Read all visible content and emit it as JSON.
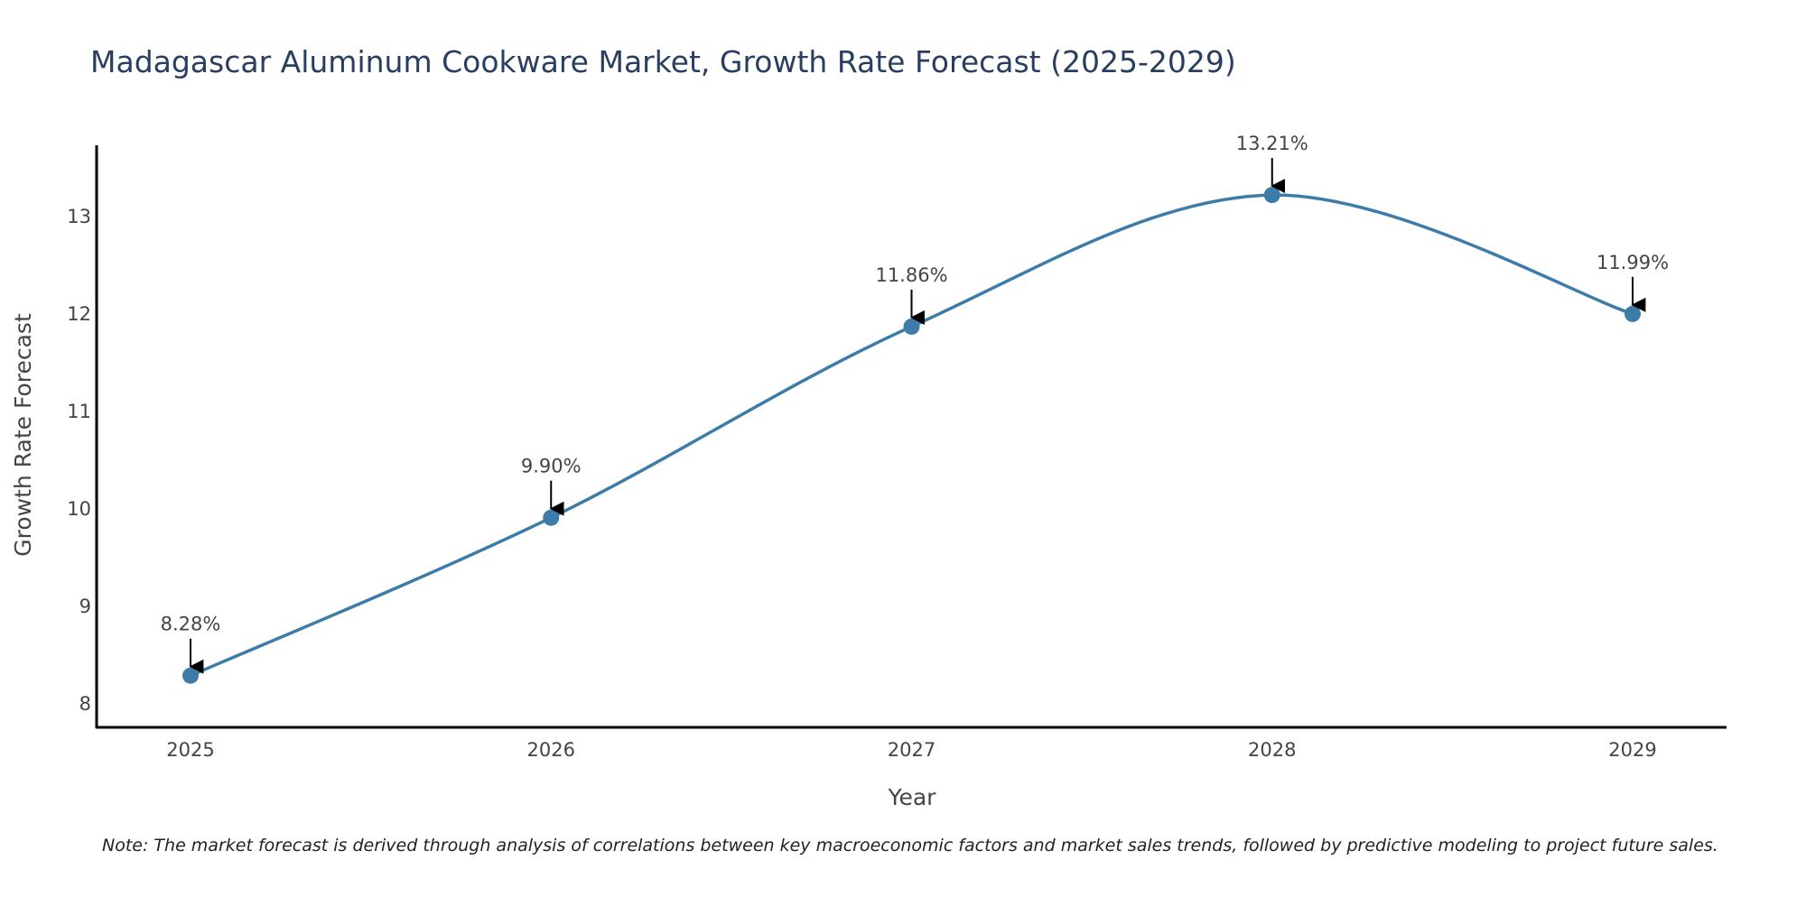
{
  "chart_data": {
    "type": "line",
    "title": "Madagascar Aluminum Cookware Market, Growth Rate Forecast (2025-2029)",
    "xlabel": "Year",
    "ylabel": "Growth Rate Forecast",
    "categories": [
      "2025",
      "2026",
      "2027",
      "2028",
      "2029"
    ],
    "series": [
      {
        "values": [
          8.28,
          9.9,
          11.86,
          13.21,
          11.99
        ],
        "data_labels": [
          "8.28%",
          "9.90%",
          "11.86%",
          "13.21%",
          "11.99%"
        ]
      }
    ],
    "y_ticks": [
      8,
      9,
      10,
      11,
      12,
      13
    ],
    "ylim": [
      7.75,
      13.72
    ],
    "grid": false,
    "legend": "none",
    "line_shape": "spline",
    "note": "Note: The market forecast is derived through analysis of correlations between key macroeconomic factors and market sales trends, followed by predictive modeling to project future sales.",
    "colors": {
      "line": "#3d7ca9",
      "marker": "#3d7ca9",
      "title": "#2a3f5f",
      "tick": "#444444",
      "annotation": "#444444",
      "axis": "#000000"
    }
  }
}
